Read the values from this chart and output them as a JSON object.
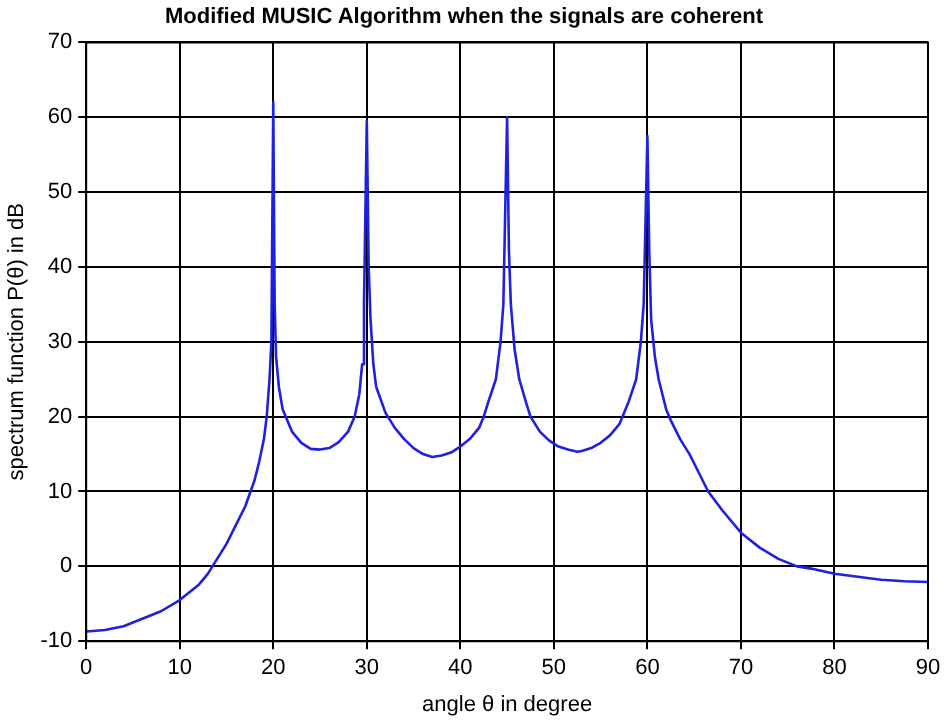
{
  "chart_data": {
    "type": "line",
    "title": "Modified MUSIC Algorithm when the signals are coherent",
    "xlabel": "angle θ in degree",
    "ylabel": "spectrum function P(θ) in dB",
    "x": [
      0,
      2,
      4,
      6,
      8,
      10,
      12,
      13,
      14,
      15,
      16,
      17,
      18,
      18.5,
      19,
      19.3,
      19.6,
      19.8,
      20,
      20.15,
      20.3,
      20.6,
      21,
      22,
      23,
      24,
      25,
      26,
      27,
      28,
      28.7,
      29.2,
      29.5,
      29.7,
      30,
      30.2,
      30.4,
      30.7,
      31,
      32,
      33,
      34,
      35,
      36,
      37,
      38,
      39,
      40,
      41,
      42,
      42.5,
      43,
      43.8,
      44.3,
      44.6,
      45,
      45.2,
      45.4,
      45.8,
      46.3,
      47,
      47.5,
      48.5,
      49.5,
      50.5,
      51.5,
      52.5,
      53,
      54,
      55,
      56,
      57,
      58,
      58.8,
      59.3,
      59.6,
      60,
      60.2,
      60.4,
      60.8,
      61.2,
      62,
      62.5,
      63.5,
      64.5,
      65.5,
      66.5,
      68,
      70,
      72,
      74,
      76,
      77.5,
      80,
      82.5,
      85,
      87.5,
      90
    ],
    "series": [
      {
        "color": "#2020e0",
        "values": [
          -8.7,
          -8.5,
          -8,
          -7,
          -6,
          -4.5,
          -2.5,
          -1,
          1,
          3,
          5.5,
          8,
          11.5,
          14,
          17,
          20,
          25,
          30,
          62,
          35,
          28,
          24,
          21,
          18,
          16.5,
          15.7,
          15.6,
          15.8,
          16.6,
          18,
          20,
          23,
          27,
          35,
          59.5,
          40,
          33,
          27,
          24,
          20.5,
          18.5,
          17,
          15.8,
          15,
          14.6,
          14.8,
          15.2,
          16,
          17,
          18.5,
          20,
          22,
          25,
          30,
          35,
          60,
          42,
          35,
          29,
          25,
          22,
          20,
          18,
          16.8,
          16,
          15.6,
          15.3,
          15.4,
          15.8,
          16.5,
          17.5,
          19,
          22,
          25,
          30,
          35,
          57.5,
          42,
          33,
          28,
          25,
          21,
          19.5,
          17,
          15,
          12.5,
          10,
          7.5,
          4.5,
          2.5,
          1,
          0,
          -0.3,
          -1,
          -1.4,
          -1.8,
          -2,
          -2.1
        ]
      }
    ],
    "xlim": [
      0,
      90
    ],
    "xticks": [
      0,
      10,
      20,
      30,
      40,
      50,
      60,
      70,
      80,
      90
    ],
    "ylim": [
      -10,
      70
    ],
    "yticks": [
      -10,
      0,
      10,
      20,
      30,
      40,
      50,
      60,
      70
    ],
    "grid": true,
    "legend": false,
    "marker": "none",
    "line_style": "solid"
  }
}
